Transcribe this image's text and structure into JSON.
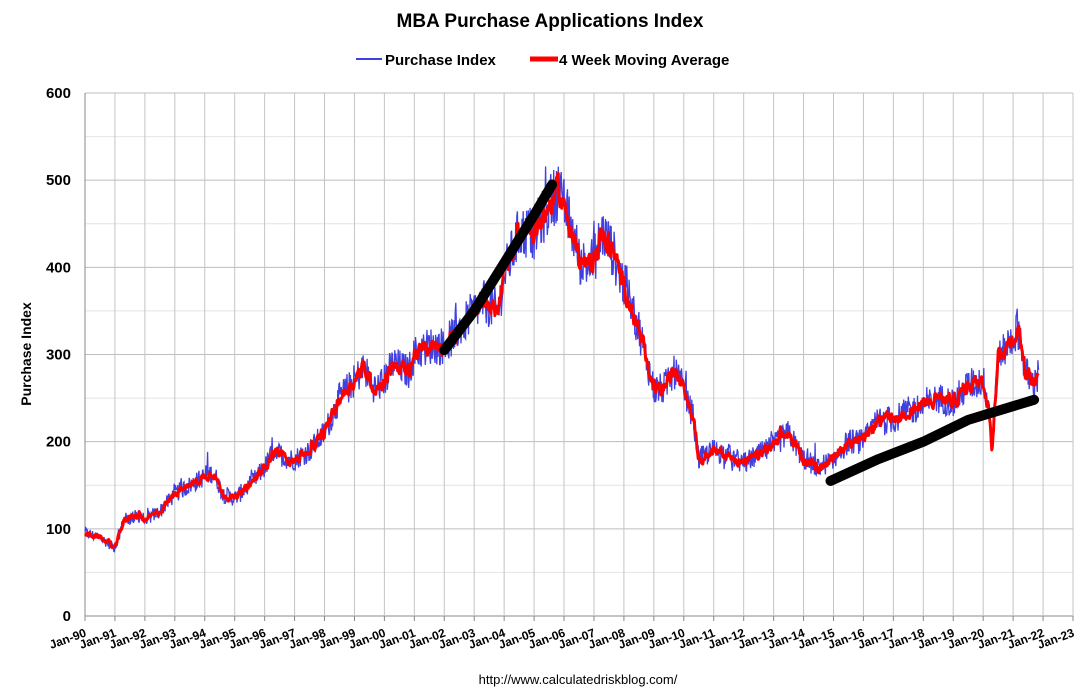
{
  "chart_data": {
    "type": "line",
    "title": "MBA Purchase Applications Index",
    "ylabel": "Purchase Index",
    "xlabel": "",
    "ylim": [
      0,
      600
    ],
    "yticks": [
      "0",
      "100",
      "200",
      "300",
      "400",
      "500",
      "600"
    ],
    "xlim": [
      1990,
      2023
    ],
    "xticks": [
      "Jan-90",
      "Jan-91",
      "Jan-92",
      "Jan-93",
      "Jan-94",
      "Jan-95",
      "Jan-96",
      "Jan-97",
      "Jan-98",
      "Jan-99",
      "Jan-00",
      "Jan-01",
      "Jan-02",
      "Jan-03",
      "Jan-04",
      "Jan-05",
      "Jan-06",
      "Jan-07",
      "Jan-08",
      "Jan-09",
      "Jan-10",
      "Jan-11",
      "Jan-12",
      "Jan-13",
      "Jan-14",
      "Jan-15",
      "Jan-16",
      "Jan-17",
      "Jan-18",
      "Jan-19",
      "Jan-20",
      "Jan-21",
      "Jan-22",
      "Jan-23"
    ],
    "grid": true,
    "legend_position": "top-center",
    "source": "http://www.calculatedriskblog.com/",
    "series": [
      {
        "name": "Purchase Index",
        "color": "#4040e0",
        "noise": 18
      },
      {
        "name": "4 Week Moving Average",
        "color": "#ff0000",
        "noise": 7
      }
    ],
    "ma_points": [
      [
        1990.0,
        95
      ],
      [
        1990.5,
        90
      ],
      [
        1991.0,
        78
      ],
      [
        1991.3,
        110
      ],
      [
        1991.8,
        115
      ],
      [
        1992.0,
        110
      ],
      [
        1992.5,
        120
      ],
      [
        1993.0,
        140
      ],
      [
        1993.5,
        150
      ],
      [
        1994.0,
        160
      ],
      [
        1994.3,
        165
      ],
      [
        1994.6,
        140
      ],
      [
        1995.0,
        135
      ],
      [
        1995.5,
        150
      ],
      [
        1996.0,
        170
      ],
      [
        1996.3,
        190
      ],
      [
        1996.8,
        180
      ],
      [
        1997.0,
        180
      ],
      [
        1997.5,
        190
      ],
      [
        1998.0,
        210
      ],
      [
        1998.5,
        250
      ],
      [
        1999.0,
        270
      ],
      [
        1999.3,
        285
      ],
      [
        1999.7,
        260
      ],
      [
        2000.0,
        270
      ],
      [
        2000.3,
        290
      ],
      [
        2000.8,
        280
      ],
      [
        2001.0,
        300
      ],
      [
        2001.5,
        310
      ],
      [
        2002.0,
        310
      ],
      [
        2002.5,
        330
      ],
      [
        2003.0,
        350
      ],
      [
        2003.3,
        360
      ],
      [
        2003.8,
        350
      ],
      [
        2004.0,
        390
      ],
      [
        2004.5,
        440
      ],
      [
        2005.0,
        440
      ],
      [
        2005.5,
        470
      ],
      [
        2005.8,
        490
      ],
      [
        2006.0,
        470
      ],
      [
        2006.3,
        440
      ],
      [
        2006.5,
        410
      ],
      [
        2006.8,
        400
      ],
      [
        2007.0,
        410
      ],
      [
        2007.3,
        440
      ],
      [
        2007.6,
        420
      ],
      [
        2008.0,
        380
      ],
      [
        2008.5,
        330
      ],
      [
        2009.0,
        260
      ],
      [
        2009.3,
        260
      ],
      [
        2009.7,
        280
      ],
      [
        2010.0,
        260
      ],
      [
        2010.3,
        230
      ],
      [
        2010.5,
        180
      ],
      [
        2011.0,
        190
      ],
      [
        2011.5,
        185
      ],
      [
        2012.0,
        175
      ],
      [
        2012.5,
        185
      ],
      [
        2013.0,
        195
      ],
      [
        2013.5,
        210
      ],
      [
        2014.0,
        180
      ],
      [
        2014.5,
        170
      ],
      [
        2015.0,
        180
      ],
      [
        2015.5,
        200
      ],
      [
        2016.0,
        200
      ],
      [
        2016.5,
        225
      ],
      [
        2017.0,
        225
      ],
      [
        2017.5,
        235
      ],
      [
        2018.0,
        240
      ],
      [
        2018.5,
        250
      ],
      [
        2019.0,
        245
      ],
      [
        2019.5,
        265
      ],
      [
        2020.0,
        270
      ],
      [
        2020.2,
        240
      ],
      [
        2020.3,
        190
      ],
      [
        2020.5,
        300
      ],
      [
        2020.8,
        310
      ],
      [
        2021.0,
        320
      ],
      [
        2021.2,
        330
      ],
      [
        2021.4,
        280
      ],
      [
        2021.7,
        265
      ],
      [
        2021.8,
        270
      ],
      [
        2021.85,
        280
      ]
    ],
    "trend_lines": [
      {
        "name": "2002-2005 trend",
        "color": "#000000",
        "points": [
          [
            2002.0,
            305
          ],
          [
            2003.0,
            350
          ],
          [
            2004.0,
            405
          ],
          [
            2005.0,
            460
          ],
          [
            2005.6,
            495
          ]
        ]
      },
      {
        "name": "2015-2021 trend",
        "color": "#000000",
        "points": [
          [
            2014.9,
            155
          ],
          [
            2016.5,
            180
          ],
          [
            2018.0,
            200
          ],
          [
            2019.5,
            225
          ],
          [
            2021.7,
            248
          ]
        ]
      }
    ]
  }
}
